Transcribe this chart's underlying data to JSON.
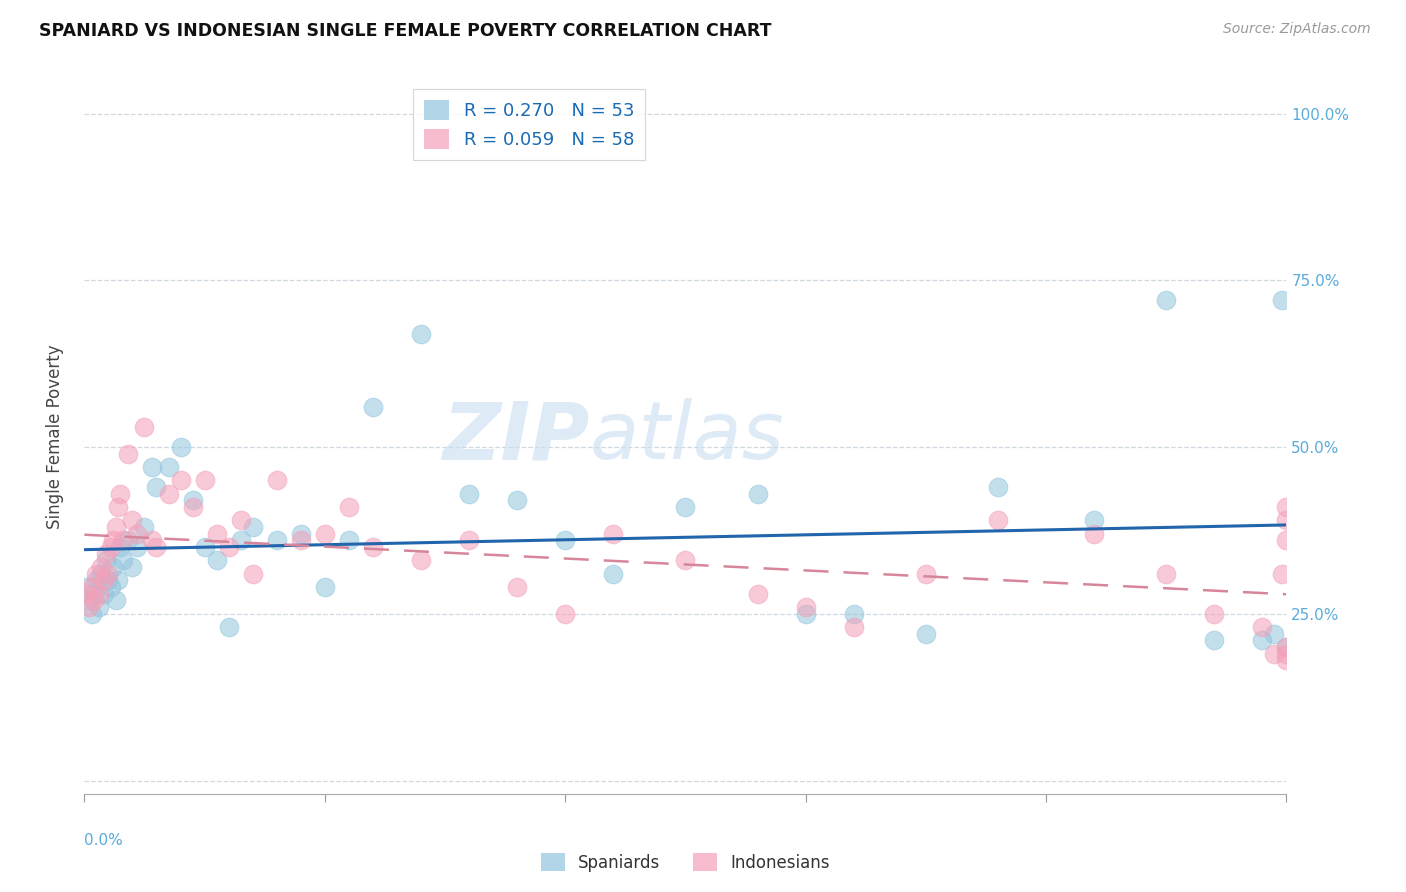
{
  "title": "SPANIARD VS INDONESIAN SINGLE FEMALE POVERTY CORRELATION CHART",
  "source": "Source: ZipAtlas.com",
  "ylabel": "Single Female Poverty",
  "xlim": [
    0.0,
    0.5
  ],
  "ylim": [
    -0.02,
    1.05
  ],
  "watermark_zip": "ZIP",
  "watermark_atlas": "atlas",
  "legend_r1": "R = 0.270",
  "legend_n1": "N = 53",
  "legend_r2": "R = 0.059",
  "legend_n2": "N = 58",
  "spaniards_color": "#92c5de",
  "indonesians_color": "#f4a0b8",
  "trend_blue": "#2166ac",
  "trend_pink": "#d6869a",
  "spaniards_x": [
    0.001,
    0.002,
    0.003,
    0.004,
    0.005,
    0.006,
    0.007,
    0.008,
    0.009,
    0.01,
    0.011,
    0.012,
    0.013,
    0.014,
    0.015,
    0.016,
    0.018,
    0.02,
    0.022,
    0.025,
    0.028,
    0.03,
    0.035,
    0.04,
    0.045,
    0.05,
    0.055,
    0.06,
    0.065,
    0.07,
    0.08,
    0.09,
    0.1,
    0.11,
    0.12,
    0.14,
    0.16,
    0.18,
    0.2,
    0.22,
    0.25,
    0.28,
    0.3,
    0.32,
    0.35,
    0.38,
    0.42,
    0.45,
    0.47,
    0.49,
    0.495,
    0.498,
    0.5
  ],
  "spaniards_y": [
    0.29,
    0.27,
    0.25,
    0.28,
    0.3,
    0.26,
    0.31,
    0.28,
    0.33,
    0.3,
    0.29,
    0.32,
    0.27,
    0.3,
    0.35,
    0.33,
    0.36,
    0.32,
    0.35,
    0.38,
    0.47,
    0.44,
    0.47,
    0.5,
    0.42,
    0.35,
    0.33,
    0.23,
    0.36,
    0.38,
    0.36,
    0.37,
    0.29,
    0.36,
    0.56,
    0.67,
    0.43,
    0.42,
    0.36,
    0.31,
    0.41,
    0.43,
    0.25,
    0.25,
    0.22,
    0.44,
    0.39,
    0.72,
    0.21,
    0.21,
    0.22,
    0.72,
    0.2
  ],
  "indonesians_x": [
    0.001,
    0.002,
    0.003,
    0.004,
    0.005,
    0.006,
    0.007,
    0.008,
    0.009,
    0.01,
    0.011,
    0.012,
    0.013,
    0.014,
    0.015,
    0.016,
    0.018,
    0.02,
    0.022,
    0.025,
    0.028,
    0.03,
    0.035,
    0.04,
    0.045,
    0.05,
    0.055,
    0.06,
    0.065,
    0.07,
    0.08,
    0.09,
    0.1,
    0.11,
    0.12,
    0.14,
    0.16,
    0.18,
    0.2,
    0.22,
    0.25,
    0.28,
    0.3,
    0.32,
    0.35,
    0.38,
    0.42,
    0.45,
    0.47,
    0.49,
    0.495,
    0.498,
    0.5,
    0.5,
    0.5,
    0.5,
    0.5,
    0.5
  ],
  "indonesians_y": [
    0.28,
    0.26,
    0.29,
    0.27,
    0.31,
    0.28,
    0.32,
    0.3,
    0.34,
    0.31,
    0.35,
    0.36,
    0.38,
    0.41,
    0.43,
    0.36,
    0.49,
    0.39,
    0.37,
    0.53,
    0.36,
    0.35,
    0.43,
    0.45,
    0.41,
    0.45,
    0.37,
    0.35,
    0.39,
    0.31,
    0.45,
    0.36,
    0.37,
    0.41,
    0.35,
    0.33,
    0.36,
    0.29,
    0.25,
    0.37,
    0.33,
    0.28,
    0.26,
    0.23,
    0.31,
    0.39,
    0.37,
    0.31,
    0.25,
    0.23,
    0.19,
    0.31,
    0.36,
    0.41,
    0.39,
    0.2,
    0.18,
    0.19
  ]
}
